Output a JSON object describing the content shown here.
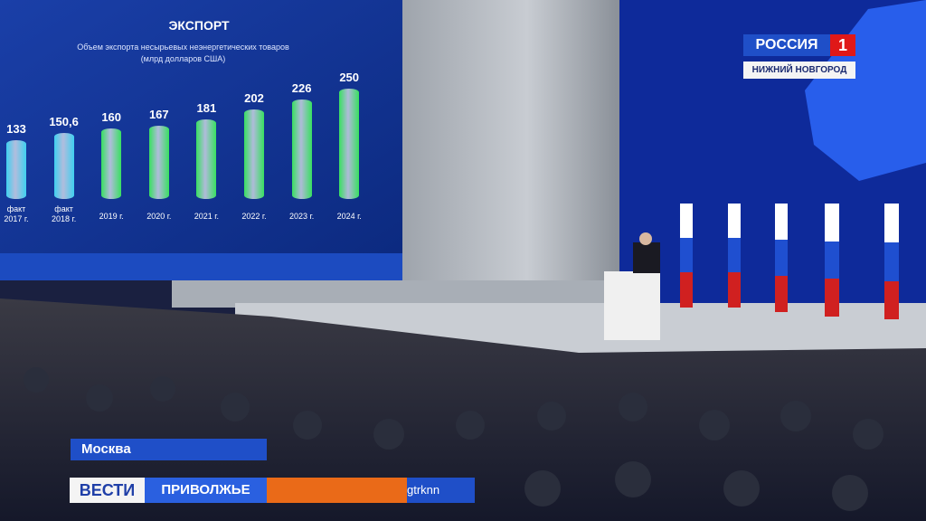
{
  "chart_data": {
    "type": "bar",
    "title": "ЭКСПОРТ",
    "subtitle": "Объем экспорта несырьевых неэнергетических товаров\n(млрд долларов США)",
    "categories": [
      "факт\n2017 г.",
      "факт\n2018 г.",
      "2019 г.",
      "2020 г.",
      "2021 г.",
      "2022 г.",
      "2023 г.",
      "2024 г."
    ],
    "values": [
      133,
      150.6,
      160,
      167,
      181,
      202,
      226,
      250
    ],
    "value_labels": [
      "133",
      "150,6",
      "160",
      "167",
      "181",
      "202",
      "226",
      "250"
    ],
    "colors": [
      "#3fd0f0",
      "#3fd0f0",
      "#38e060",
      "#38e060",
      "#38e060",
      "#38e060",
      "#38e060",
      "#38e060"
    ]
  },
  "overlay": {
    "channel": "РОССИЯ",
    "channel_number": "1",
    "region": "НИЖНИЙ НОВГОРОД",
    "location": "Москва",
    "program": "ВЕСТИ",
    "program_region": "ПРИВОЛЖЬЕ",
    "handle": "gtrknn"
  }
}
